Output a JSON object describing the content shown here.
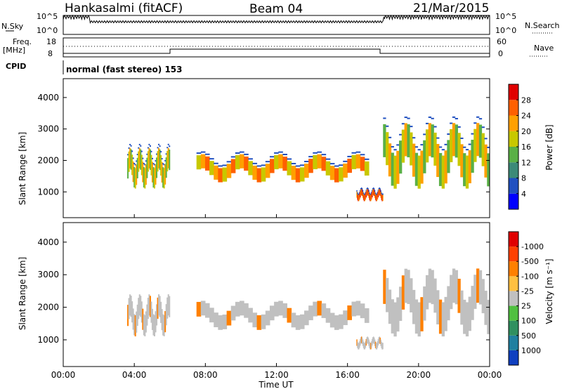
{
  "header": {
    "station": "Hankasalmi (fitACF)",
    "beam": "Beam 04",
    "date": "21/Mar/2015"
  },
  "nsky": {
    "label": "N.Sky",
    "ticks": [
      "10^5",
      "10^0"
    ],
    "right_label": "N.Search",
    "right_ticks": [
      "10^5",
      "10^0"
    ]
  },
  "freq": {
    "label_line1": "Freq.",
    "label_line2": "[MHz]",
    "ticks": [
      "18",
      "8"
    ],
    "right_label": "Nave",
    "right_ticks": [
      "60",
      "0"
    ]
  },
  "cpid": {
    "label": "CPID",
    "mode": "normal (fast stereo) 153"
  },
  "axes": {
    "ylabel": "Slant Range [km]",
    "yticks": [
      "1000",
      "2000",
      "3000",
      "4000"
    ],
    "xticks": [
      "00:00",
      "04:00",
      "08:00",
      "12:00",
      "16:00",
      "20:00",
      "00:00"
    ],
    "xlabel": "Time UT"
  },
  "power_colorbar": {
    "label": "Power [dB]",
    "ticks": [
      "4",
      "8",
      "12",
      "16",
      "20",
      "24",
      "28"
    ],
    "colors": [
      "#0000ff",
      "#2050c0",
      "#3c8a78",
      "#5ab046",
      "#c8c800",
      "#ffa000",
      "#ff6000",
      "#e00000"
    ]
  },
  "velocity_colorbar": {
    "label": "Velocity [m s⁻¹]",
    "ticks": [
      "1000",
      "500",
      "100",
      "25",
      "-25",
      "-100",
      "-500",
      "-1000"
    ],
    "colors": [
      "#1040c0",
      "#2080a0",
      "#309060",
      "#50c040",
      "#c0c0c0",
      "#ffc040",
      "#ff8000",
      "#ff4000",
      "#e00000"
    ]
  },
  "chart_data": {
    "type": "heatmap",
    "xlabel": "Time UT",
    "ylabel": "Slant Range [km]",
    "ylim": [
      180,
      4600
    ],
    "x": [
      "00:00",
      "04:00",
      "08:00",
      "12:00",
      "16:00",
      "20:00",
      "00:00"
    ],
    "colorbar_power": {
      "label": "Power [dB]",
      "range": [
        0,
        32
      ]
    },
    "colorbar_velocity": {
      "label": "Velocity [m s^-1]",
      "range": [
        -1000,
        1000
      ]
    },
    "echo_bands_hours_km": [
      {
        "t0": 3.6,
        "t1": 6.0,
        "r0": 1100,
        "r1": 2400,
        "power_db": 14
      },
      {
        "t0": 7.5,
        "t1": 17.2,
        "r0": 1300,
        "r1": 2200,
        "power_db": 18
      },
      {
        "t0": 18.0,
        "t1": 24.0,
        "r0": 1100,
        "r1": 3200,
        "power_db": 16
      },
      {
        "t0": 16.5,
        "t1": 18.0,
        "r0": 700,
        "r1": 1100,
        "power_db": 24
      }
    ]
  }
}
